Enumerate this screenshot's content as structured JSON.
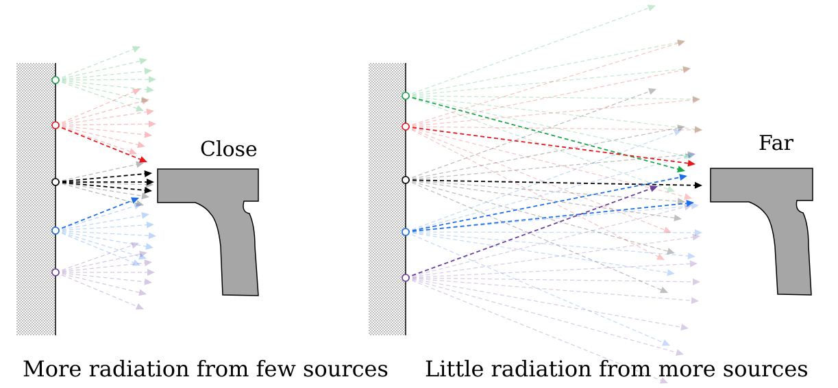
{
  "panels": {
    "close": {
      "label": "Close",
      "caption": "More radiation from few sources"
    },
    "far": {
      "label": "Far",
      "caption": "Little radiation from more sources"
    }
  },
  "colors": {
    "green": "#1aa64a",
    "red": "#e8161b",
    "black": "#000000",
    "blue": "#1c6fe8",
    "purple": "#6a3d9a",
    "object_fill": "#a6a6a6",
    "wall_dots": "#555555"
  },
  "sources": [
    "green",
    "red",
    "black",
    "blue",
    "purple"
  ]
}
